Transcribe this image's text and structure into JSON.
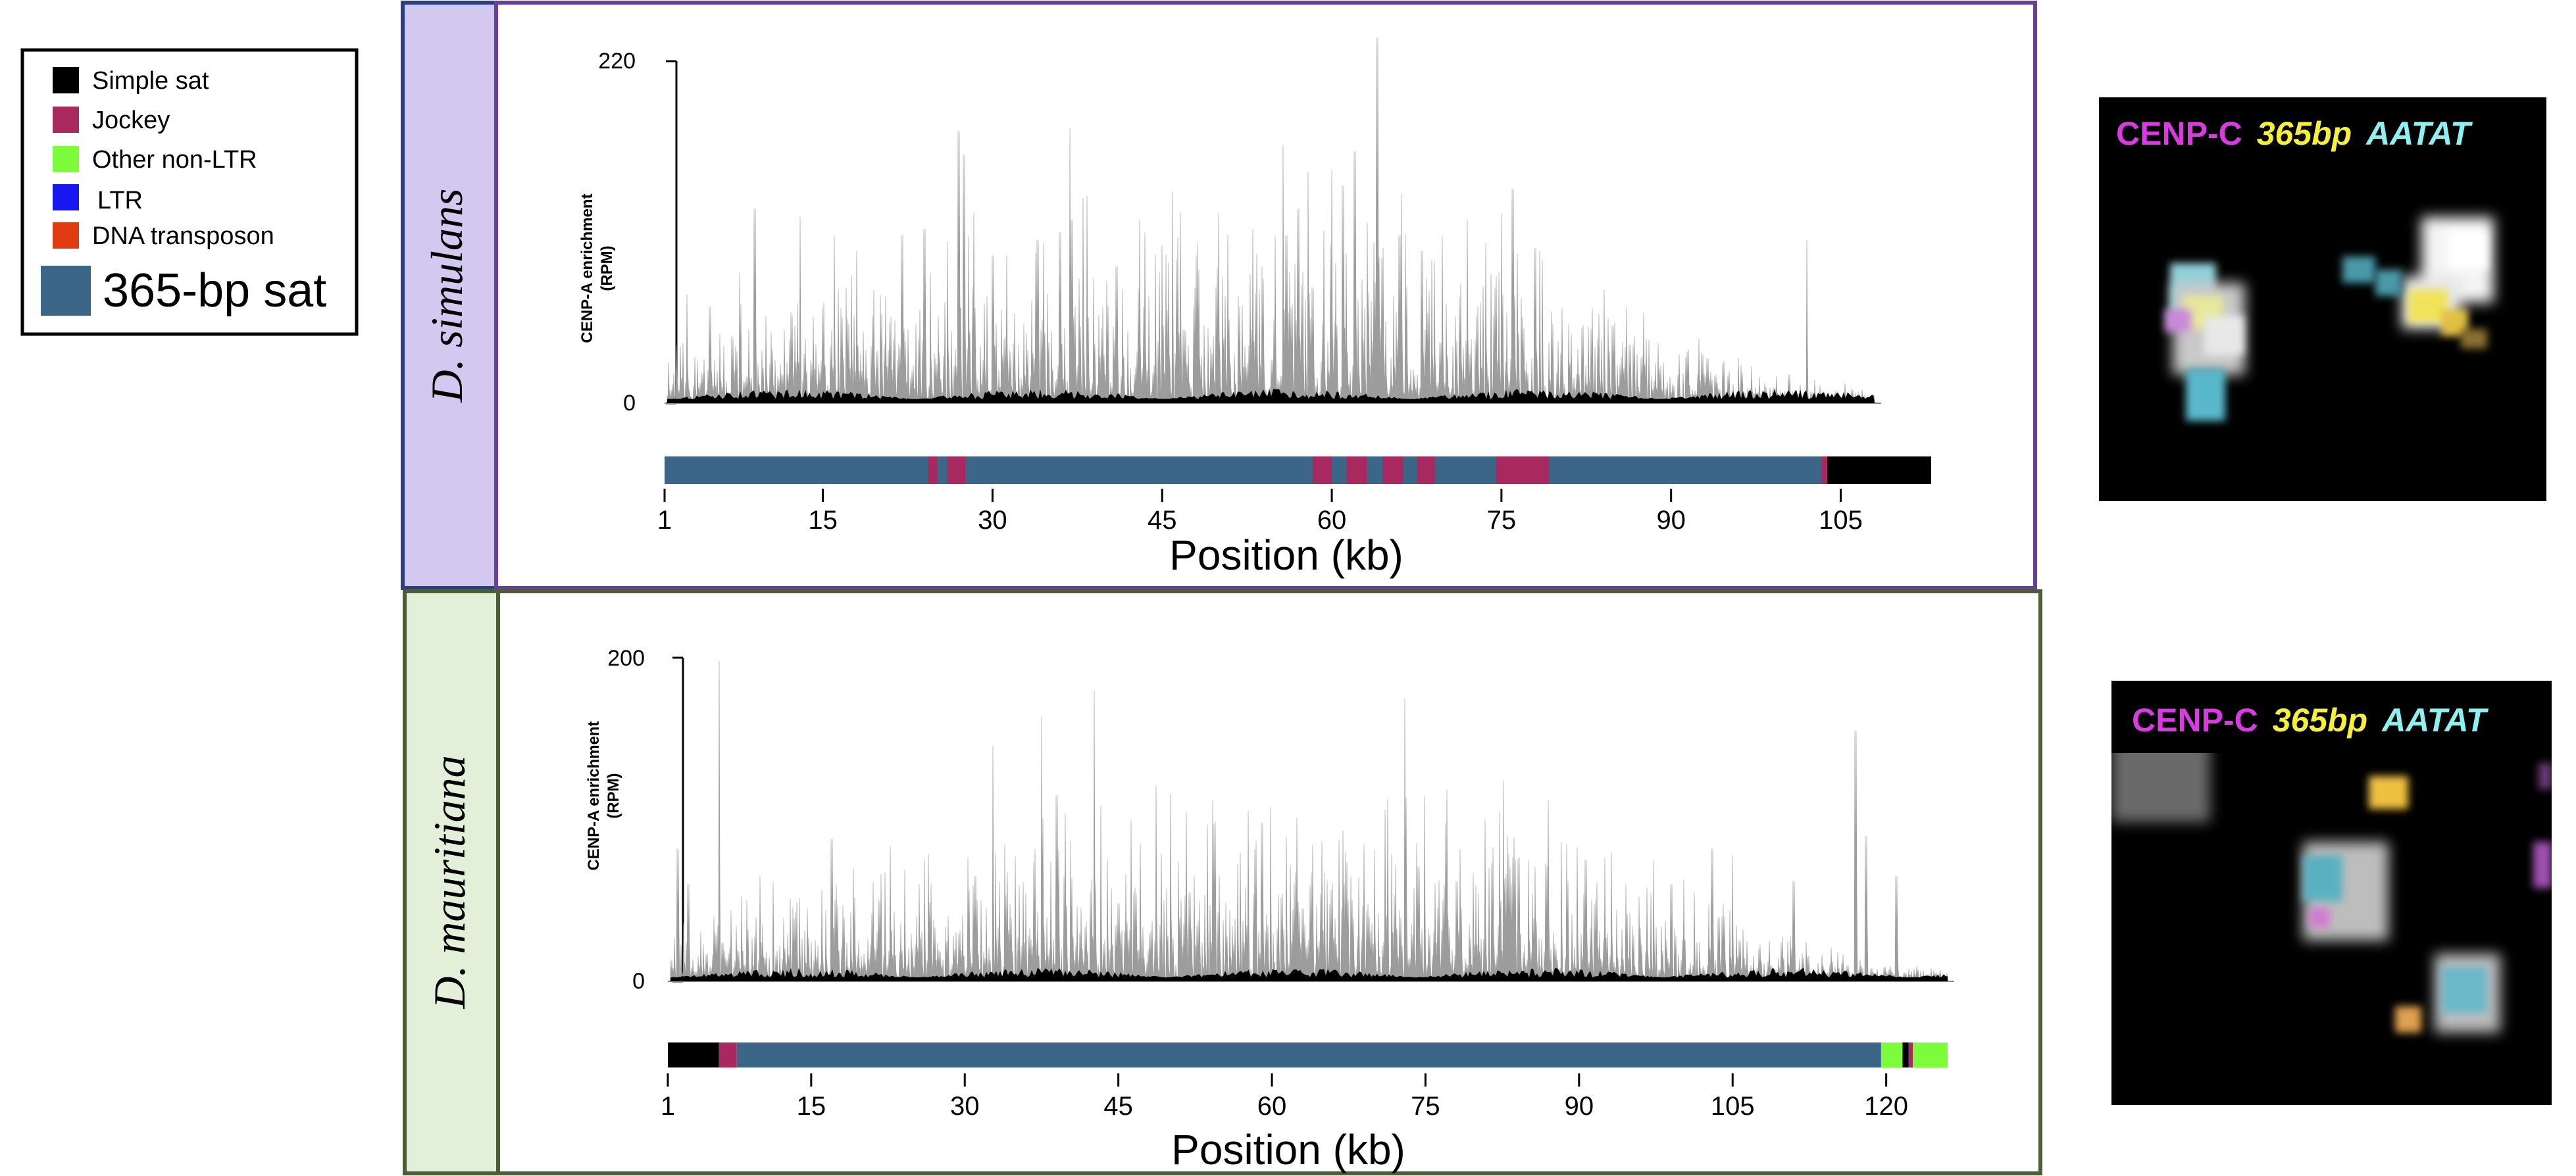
{
  "legend": {
    "items": [
      {
        "label": "Simple sat",
        "color": "#000000"
      },
      {
        "label": "Jockey",
        "color": "#a8295f"
      },
      {
        "label": "Other non-LTR",
        "color": "#7dfc3c"
      },
      {
        "label": "LTR",
        "color": "#1717f2"
      },
      {
        "label": "DNA transposon",
        "color": "#e03a10"
      },
      {
        "label": "365-bp sat",
        "color": "#3b6688"
      }
    ]
  },
  "colors": {
    "simulans_frame": "#6b3e9a",
    "simulans_label_bg": "#d3c8ef",
    "simulans_label_border": "#2b3f84",
    "mauritiana_frame": "#4c5e36",
    "mauritiana_label_bg": "#e2efd9",
    "signal": "#9c9c9c",
    "input": "#000000"
  },
  "chart_data": [
    {
      "type": "area",
      "species": "D. simulans",
      "ylabel_line1": "CENP-A enrichment",
      "ylabel_line2": "(RPM)",
      "xlabel": "Position (kb)",
      "y_top_label": "220",
      "y_zero_label": "0",
      "ylim": [
        0,
        220
      ],
      "x_domain": [
        1,
        113
      ],
      "x_ticks": [
        "1",
        "15",
        "30",
        "45",
        "60",
        "75",
        "90",
        "105"
      ],
      "x_tick_values": [
        1,
        15,
        30,
        45,
        60,
        75,
        90,
        105
      ],
      "signal_end": 108,
      "base_seed": 11,
      "peaks": [
        [
          3,
          70
        ],
        [
          5,
          62
        ],
        [
          9,
          125
        ],
        [
          13,
          120
        ],
        [
          16,
          108
        ],
        [
          18,
          98
        ],
        [
          22,
          108
        ],
        [
          24,
          112
        ],
        [
          27,
          175
        ],
        [
          27.5,
          160
        ],
        [
          30,
          95
        ],
        [
          34,
          105
        ],
        [
          36,
          110
        ],
        [
          37,
          118
        ],
        [
          38,
          132
        ],
        [
          41,
          88
        ],
        [
          43,
          118
        ],
        [
          45,
          102
        ],
        [
          48,
          95
        ],
        [
          50,
          122
        ],
        [
          53,
          112
        ],
        [
          56,
          108
        ],
        [
          57,
          125
        ],
        [
          60,
          150
        ],
        [
          61,
          140
        ],
        [
          62,
          162
        ],
        [
          64,
          235
        ],
        [
          66,
          108
        ],
        [
          68,
          98
        ],
        [
          72,
          118
        ],
        [
          75,
          122
        ],
        [
          76,
          138
        ],
        [
          78,
          100
        ],
        [
          83,
          48
        ],
        [
          86,
          30
        ],
        [
          89,
          22
        ],
        [
          95,
          18
        ],
        [
          102,
          105
        ]
      ],
      "track": [
        {
          "start": 1,
          "end": 103.5,
          "type": "365-bp sat"
        },
        {
          "start": 24.3,
          "end": 25.1,
          "type": "Jockey"
        },
        {
          "start": 26,
          "end": 27.6,
          "type": "Jockey"
        },
        {
          "start": 58.3,
          "end": 60,
          "type": "Jockey"
        },
        {
          "start": 61.3,
          "end": 63.1,
          "type": "Jockey"
        },
        {
          "start": 64.5,
          "end": 66.3,
          "type": "Jockey"
        },
        {
          "start": 67.5,
          "end": 69.1,
          "type": "Jockey"
        },
        {
          "start": 74.5,
          "end": 79.2,
          "type": "Jockey"
        },
        {
          "start": 103.3,
          "end": 103.8,
          "type": "Jockey"
        },
        {
          "start": 103.8,
          "end": 113,
          "type": "Simple sat"
        }
      ],
      "image_title": {
        "cenpc": "CENP-C",
        "sat": "365bp",
        "aatat": "AATAT"
      }
    },
    {
      "type": "area",
      "species": "D. mauritiana",
      "ylabel_line1": "CENP-A enrichment",
      "ylabel_line2": "(RPM)",
      "xlabel": "Position (kb)",
      "y_top_label": "200",
      "y_zero_label": "0",
      "ylim": [
        0,
        200
      ],
      "x_domain": [
        1,
        126
      ],
      "x_ticks": [
        "1",
        "15",
        "30",
        "45",
        "60",
        "75",
        "90",
        "105",
        "120"
      ],
      "x_tick_values": [
        1,
        15,
        30,
        45,
        60,
        75,
        90,
        105,
        120
      ],
      "signal_end": 126,
      "base_seed": 29,
      "peaks": [
        [
          2,
          82
        ],
        [
          3,
          60
        ],
        [
          6,
          198
        ],
        [
          10,
          65
        ],
        [
          17,
          88
        ],
        [
          21,
          42
        ],
        [
          31,
          65
        ],
        [
          34,
          52
        ],
        [
          39,
          115
        ],
        [
          45,
          48
        ],
        [
          52,
          55
        ],
        [
          59,
          98
        ],
        [
          63,
          45
        ],
        [
          69,
          85
        ],
        [
          73,
          175
        ],
        [
          78,
          62
        ],
        [
          87,
          112
        ],
        [
          99,
          60
        ],
        [
          103,
          82
        ],
        [
          105,
          78
        ],
        [
          111,
          62
        ],
        [
          117,
          155
        ],
        [
          118,
          90
        ],
        [
          121,
          65
        ]
      ],
      "track": [
        {
          "start": 1,
          "end": 6,
          "type": "Simple sat"
        },
        {
          "start": 6,
          "end": 7.7,
          "type": "Jockey"
        },
        {
          "start": 7.7,
          "end": 119.5,
          "type": "365-bp sat"
        },
        {
          "start": 119.5,
          "end": 121.6,
          "type": "Other non-LTR"
        },
        {
          "start": 121.6,
          "end": 122.2,
          "type": "Simple sat"
        },
        {
          "start": 122.2,
          "end": 122.6,
          "type": "Jockey"
        },
        {
          "start": 122.6,
          "end": 126,
          "type": "Other non-LTR"
        }
      ],
      "image_title": {
        "cenpc": "CENP-C",
        "sat": "365bp",
        "aatat": "AATAT"
      }
    }
  ]
}
